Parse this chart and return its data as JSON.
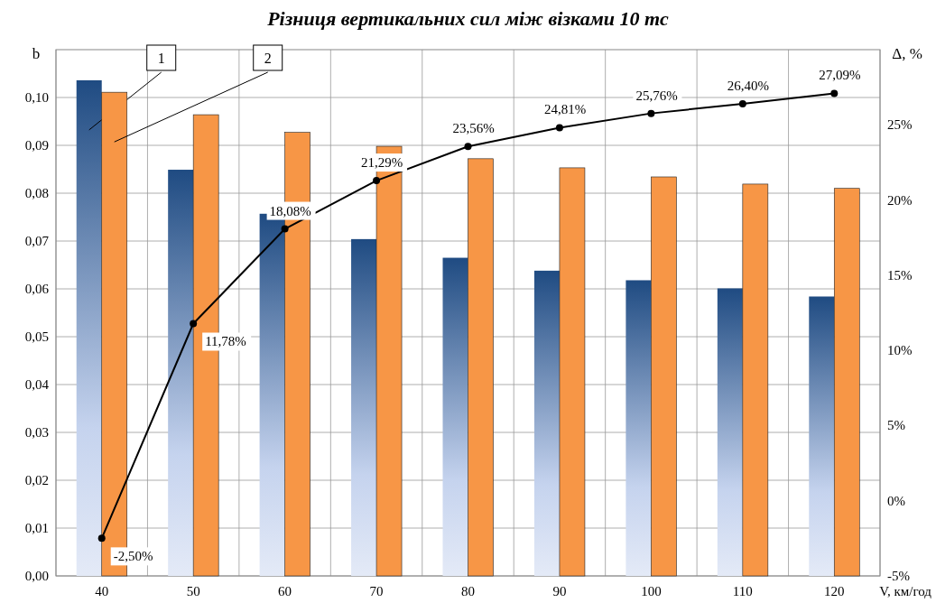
{
  "chart_data": {
    "type": "bar",
    "title": "Різниця вертикальних сил між візками 10 тс",
    "xlabel": "V, км/год",
    "ylabel": "b",
    "y2label": "Δ, %",
    "categories": [
      "40",
      "50",
      "60",
      "70",
      "80",
      "90",
      "100",
      "110",
      "120"
    ],
    "series": [
      {
        "name": "1",
        "color": "#1f4b82",
        "values": [
          0.1036,
          0.0849,
          0.0757,
          0.0704,
          0.0665,
          0.0638,
          0.0618,
          0.0601,
          0.0584
        ]
      },
      {
        "name": "2",
        "color": "#f79646",
        "values": [
          0.1011,
          0.0964,
          0.0927,
          0.0898,
          0.0872,
          0.0853,
          0.0834,
          0.0819,
          0.081
        ]
      },
      {
        "type": "line",
        "axis": "y2",
        "color": "#000000",
        "marker": "circle",
        "values": [
          -2.5,
          11.78,
          18.08,
          21.29,
          23.56,
          24.81,
          25.76,
          26.4,
          27.09
        ],
        "value_labels": [
          "-2,50%",
          "11,78%",
          "18,08%",
          "21,29%",
          "23,56%",
          "24,81%",
          "25,76%",
          "26,40%",
          "27,09%"
        ]
      }
    ],
    "ylim": [
      0,
      0.11
    ],
    "yticks": [
      {
        "value": 0,
        "label": "0,00"
      },
      {
        "value": 0.01,
        "label": "0,01"
      },
      {
        "value": 0.02,
        "label": "0,02"
      },
      {
        "value": 0.03,
        "label": "0,03"
      },
      {
        "value": 0.04,
        "label": "0,04"
      },
      {
        "value": 0.05,
        "label": "0,05"
      },
      {
        "value": 0.06,
        "label": "0,06"
      },
      {
        "value": 0.07,
        "label": "0,07"
      },
      {
        "value": 0.08,
        "label": "0,08"
      },
      {
        "value": 0.09,
        "label": "0,09"
      },
      {
        "value": 0.1,
        "label": "0,10"
      }
    ],
    "y2lim": [
      -5,
      30
    ],
    "y2ticks": [
      {
        "value": -5,
        "label": "-5%"
      },
      {
        "value": 0,
        "label": "0%"
      },
      {
        "value": 5,
        "label": "5%"
      },
      {
        "value": 10,
        "label": "10%"
      },
      {
        "value": 15,
        "label": "15%"
      },
      {
        "value": 20,
        "label": "20%"
      },
      {
        "value": 25,
        "label": "25%"
      }
    ],
    "grid": true
  }
}
